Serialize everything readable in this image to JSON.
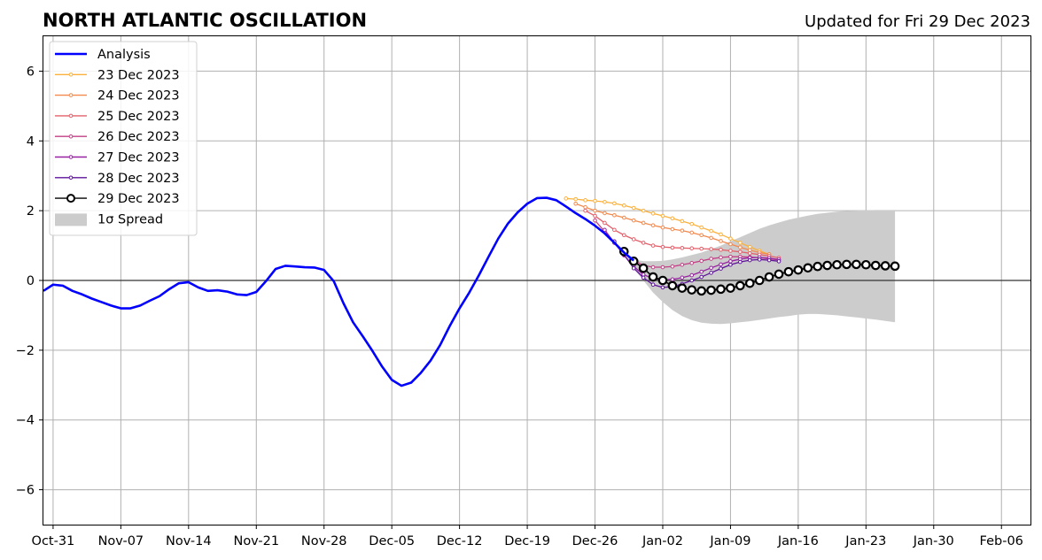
{
  "chart_data": {
    "type": "line",
    "title": "NORTH ATLANTIC OSCILLATION",
    "subtitle": "Updated for Fri 29 Dec 2023",
    "xlabel": "",
    "ylabel": "",
    "x_ticks": [
      "Oct-31",
      "Nov-07",
      "Nov-14",
      "Nov-21",
      "Nov-28",
      "Dec-05",
      "Dec-12",
      "Dec-19",
      "Dec-26",
      "Jan-02",
      "Jan-09",
      "Jan-16",
      "Jan-23",
      "Jan-30",
      "Feb-06"
    ],
    "y_ticks": [
      "6",
      "4",
      "2",
      "0",
      "−2",
      "−4",
      "−6"
    ],
    "y_tick_values": [
      6,
      4,
      2,
      0,
      -2,
      -4,
      -6
    ],
    "xlim": [
      "2023-10-30",
      "2024-02-09"
    ],
    "ylim": [
      -7,
      7
    ],
    "grid": true,
    "legend_position": "top-left",
    "zero_line": true,
    "analysis": {
      "name": "Analysis",
      "color": "#0000ff",
      "x_start": "2023-10-30",
      "step_days": 1,
      "values": [
        -0.3,
        -0.12,
        -0.15,
        -0.3,
        -0.4,
        -0.52,
        -0.62,
        -0.72,
        -0.8,
        -0.8,
        -0.72,
        -0.58,
        -0.45,
        -0.25,
        -0.08,
        -0.05,
        -0.2,
        -0.3,
        -0.28,
        -0.32,
        -0.4,
        -0.42,
        -0.33,
        -0.02,
        0.33,
        0.42,
        0.4,
        0.38,
        0.37,
        0.3,
        -0.02,
        -0.65,
        -1.2,
        -1.6,
        -2.02,
        -2.47,
        -2.85,
        -3.02,
        -2.93,
        -2.65,
        -2.3,
        -1.85,
        -1.3,
        -0.8,
        -0.35,
        0.15,
        0.68,
        1.2,
        1.63,
        1.95,
        2.2,
        2.36,
        2.37,
        2.3,
        2.12,
        1.93,
        1.76,
        1.57,
        1.35,
        1.08,
        0.8,
        0.57
      ]
    },
    "forecasts": [
      {
        "name": "23 Dec 2023",
        "color": "#fbb13c",
        "x_start": "2023-12-23",
        "values": [
          2.35,
          2.33,
          2.3,
          2.28,
          2.25,
          2.21,
          2.15,
          2.08,
          2.0,
          1.92,
          1.85,
          1.78,
          1.7,
          1.62,
          1.52,
          1.42,
          1.32,
          1.2,
          1.08,
          0.96,
          0.85,
          0.75
        ]
      },
      {
        "name": "24 Dec 2023",
        "color": "#f3894d",
        "x_start": "2023-12-24",
        "values": [
          2.2,
          2.1,
          2.0,
          1.93,
          1.87,
          1.8,
          1.72,
          1.65,
          1.58,
          1.52,
          1.47,
          1.43,
          1.37,
          1.3,
          1.22,
          1.13,
          1.04,
          0.95,
          0.87,
          0.8,
          0.75
        ]
      },
      {
        "name": "25 Dec 2023",
        "color": "#e3606b",
        "x_start": "2023-12-25",
        "values": [
          2.0,
          1.85,
          1.65,
          1.45,
          1.3,
          1.18,
          1.08,
          1.0,
          0.96,
          0.94,
          0.93,
          0.92,
          0.91,
          0.9,
          0.88,
          0.85,
          0.82,
          0.78,
          0.74,
          0.7,
          0.65
        ]
      },
      {
        "name": "26 Dec 2023",
        "color": "#c33f86",
        "x_start": "2023-12-26",
        "values": [
          1.72,
          1.4,
          1.08,
          0.8,
          0.58,
          0.43,
          0.38,
          0.38,
          0.4,
          0.45,
          0.5,
          0.56,
          0.62,
          0.66,
          0.68,
          0.68,
          0.67,
          0.65,
          0.62,
          0.59
        ]
      },
      {
        "name": "27 Dec 2023",
        "color": "#9721a2",
        "x_start": "2023-12-27",
        "values": [
          1.45,
          1.08,
          0.72,
          0.4,
          0.17,
          0.05,
          0.02,
          0.03,
          0.08,
          0.15,
          0.25,
          0.36,
          0.46,
          0.55,
          0.61,
          0.65,
          0.66,
          0.64,
          0.6
        ]
      },
      {
        "name": "28 Dec 2023",
        "color": "#5e129a",
        "x_start": "2023-12-28",
        "values": [
          1.12,
          0.74,
          0.35,
          0.08,
          -0.12,
          -0.2,
          -0.18,
          -0.1,
          0.0,
          0.1,
          0.22,
          0.34,
          0.45,
          0.53,
          0.58,
          0.6,
          0.58,
          0.55
        ]
      },
      {
        "name": "29 Dec 2023",
        "color": "#000000",
        "x_start": "2023-12-29",
        "values": [
          0.83,
          0.55,
          0.35,
          0.1,
          0.0,
          -0.15,
          -0.22,
          -0.27,
          -0.3,
          -0.28,
          -0.25,
          -0.22,
          -0.15,
          -0.08,
          0.0,
          0.1,
          0.18,
          0.25,
          0.3,
          0.36,
          0.4,
          0.43,
          0.45,
          0.46,
          0.46,
          0.45,
          0.43,
          0.42,
          0.41
        ]
      }
    ],
    "spread": {
      "name": "1σ Spread",
      "color": "#cccccc",
      "x_start": "2023-12-29",
      "upper": [
        0.83,
        0.6,
        0.55,
        0.55,
        0.56,
        0.6,
        0.66,
        0.73,
        0.8,
        0.9,
        1.0,
        1.12,
        1.24,
        1.36,
        1.48,
        1.58,
        1.66,
        1.74,
        1.8,
        1.86,
        1.91,
        1.94,
        1.97,
        1.99,
        2.0,
        2.01,
        2.02,
        2.02,
        2.02
      ],
      "lower": [
        0.83,
        0.35,
        0.0,
        -0.35,
        -0.62,
        -0.85,
        -1.02,
        -1.14,
        -1.21,
        -1.24,
        -1.25,
        -1.23,
        -1.2,
        -1.17,
        -1.13,
        -1.09,
        -1.05,
        -1.02,
        -0.98,
        -0.96,
        -0.96,
        -0.98,
        -1.0,
        -1.03,
        -1.06,
        -1.09,
        -1.12,
        -1.16,
        -1.2
      ]
    }
  }
}
